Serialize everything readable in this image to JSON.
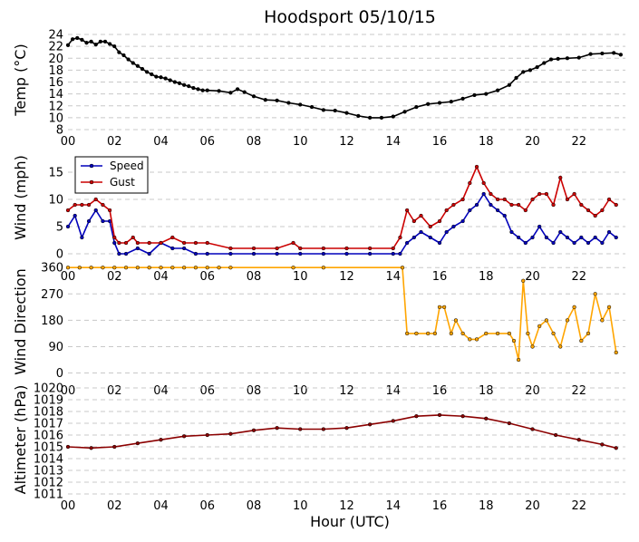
{
  "chart_data": {
    "title": "Hoodsport 05/10/15",
    "xlabel": "Hour (UTC)",
    "x_tick_labels": [
      "00",
      "02",
      "04",
      "06",
      "08",
      "10",
      "12",
      "14",
      "16",
      "18",
      "20",
      "22"
    ],
    "panels": [
      {
        "type": "line",
        "ylabel": "Temp ($^\\circ$C)",
        "ylabel_display": "Temp (°C)",
        "ylim": [
          8,
          24
        ],
        "ytick_labels": [
          "8",
          "10",
          "12",
          "14",
          "16",
          "18",
          "20",
          "22",
          "24"
        ],
        "series": [
          {
            "color": "#000000",
            "x": [
              0,
              0.2,
              0.4,
              0.6,
              0.8,
              1.0,
              1.2,
              1.4,
              1.6,
              1.8,
              2.0,
              2.2,
              2.4,
              2.6,
              2.8,
              3.0,
              3.2,
              3.4,
              3.6,
              3.8,
              4.0,
              4.2,
              4.4,
              4.6,
              4.8,
              5.0,
              5.2,
              5.4,
              5.6,
              5.8,
              6.0,
              6.5,
              7.0,
              7.3,
              7.6,
              8.0,
              8.5,
              9.0,
              9.5,
              10.0,
              10.5,
              11.0,
              11.5,
              12.0,
              12.5,
              13.0,
              13.5,
              14.0,
              14.5,
              15.0,
              15.5,
              16.0,
              16.5,
              17.0,
              17.5,
              18.0,
              18.5,
              19.0,
              19.3,
              19.6,
              19.9,
              20.2,
              20.5,
              20.8,
              21.1,
              21.5,
              22.0,
              22.5,
              23.0,
              23.5,
              23.8
            ],
            "y": [
              22.2,
              23.2,
              23.4,
              23.1,
              22.6,
              22.8,
              22.3,
              22.8,
              22.8,
              22.4,
              22.0,
              21.0,
              20.5,
              19.8,
              19.2,
              18.7,
              18.2,
              17.7,
              17.3,
              16.9,
              16.8,
              16.6,
              16.3,
              16.0,
              15.8,
              15.5,
              15.3,
              15.0,
              14.8,
              14.6,
              14.6,
              14.5,
              14.2,
              14.8,
              14.3,
              13.6,
              13.0,
              12.9,
              12.5,
              12.2,
              11.8,
              11.3,
              11.2,
              10.8,
              10.3,
              10.0,
              10.0,
              10.2,
              11.0,
              11.8,
              12.3,
              12.5,
              12.7,
              13.2,
              13.8,
              14.0,
              14.6,
              15.5,
              16.7,
              17.7,
              18.0,
              18.5,
              19.2,
              19.8,
              19.9,
              20.0,
              20.1,
              20.7,
              20.8,
              20.9,
              20.6
            ]
          }
        ]
      },
      {
        "type": "line",
        "ylabel": "Wind (mph)",
        "ylim": [
          -2,
          18
        ],
        "ytick_labels": [
          "0",
          "5",
          "10",
          "15"
        ],
        "legend_position": "top-left",
        "series": [
          {
            "name": "Speed",
            "color": "#0000bb",
            "x": [
              0,
              0.3,
              0.6,
              0.9,
              1.2,
              1.5,
              1.8,
              2.0,
              2.2,
              2.5,
              3.0,
              3.5,
              4.0,
              4.5,
              5.0,
              5.5,
              6.0,
              7.0,
              8.0,
              9.0,
              10.0,
              11.0,
              12.0,
              13.0,
              14.0,
              14.3,
              14.6,
              14.9,
              15.2,
              15.6,
              16.0,
              16.3,
              16.6,
              17.0,
              17.3,
              17.6,
              17.9,
              18.2,
              18.5,
              18.8,
              19.1,
              19.4,
              19.7,
              20.0,
              20.3,
              20.6,
              20.9,
              21.2,
              21.5,
              21.8,
              22.1,
              22.4,
              22.7,
              23.0,
              23.3,
              23.6
            ],
            "y": [
              5,
              7,
              3,
              6,
              8,
              6,
              6,
              2,
              0,
              0,
              1,
              0,
              2,
              1,
              1,
              0,
              0,
              0,
              0,
              0,
              0,
              0,
              0,
              0,
              0,
              0,
              2,
              3,
              4,
              3,
              2,
              4,
              5,
              6,
              8,
              9,
              11,
              9,
              8,
              7,
              4,
              3,
              2,
              3,
              5,
              3,
              2,
              4,
              3,
              2,
              3,
              2,
              3,
              2,
              4,
              3
            ]
          },
          {
            "name": "Gust",
            "color": "#cc0000",
            "x": [
              0,
              0.3,
              0.6,
              0.9,
              1.2,
              1.5,
              1.8,
              2.0,
              2.2,
              2.5,
              2.8,
              3.0,
              3.5,
              4.0,
              4.5,
              5.0,
              5.5,
              6.0,
              7.0,
              8.0,
              9.0,
              9.7,
              10.0,
              11.0,
              12.0,
              13.0,
              14.0,
              14.3,
              14.6,
              14.9,
              15.2,
              15.6,
              16.0,
              16.3,
              16.6,
              17.0,
              17.3,
              17.6,
              17.9,
              18.2,
              18.5,
              18.8,
              19.1,
              19.4,
              19.7,
              20.0,
              20.3,
              20.6,
              20.9,
              21.2,
              21.5,
              21.8,
              22.1,
              22.4,
              22.7,
              23.0,
              23.3,
              23.6
            ],
            "y": [
              8,
              9,
              9,
              9,
              10,
              9,
              8,
              3,
              2,
              2,
              3,
              2,
              2,
              2,
              3,
              2,
              2,
              2,
              1,
              1,
              1,
              2,
              1,
              1,
              1,
              1,
              1,
              3,
              8,
              6,
              7,
              5,
              6,
              8,
              9,
              10,
              13,
              16,
              13,
              11,
              10,
              10,
              9,
              9,
              8,
              10,
              11,
              11,
              9,
              14,
              10,
              11,
              9,
              8,
              7,
              8,
              10,
              9
            ]
          }
        ]
      },
      {
        "type": "line",
        "ylabel": "Wind Direction",
        "ylim": [
          -20,
          370
        ],
        "ytick_labels": [
          "0",
          "90",
          "180",
          "270",
          "360"
        ],
        "series": [
          {
            "color": "#ffa500",
            "x": [
              0,
              0.5,
              1.0,
              1.5,
              2.0,
              2.5,
              3.0,
              3.5,
              4.0,
              4.5,
              5.0,
              5.5,
              6.0,
              6.5,
              7.0,
              9.7,
              11.0,
              14.4,
              14.6,
              15.0,
              15.5,
              15.8,
              16.0,
              16.2,
              16.5,
              16.7,
              17.0,
              17.3,
              17.6,
              18.0,
              18.5,
              19.0,
              19.2,
              19.4,
              19.6,
              19.8,
              20.0,
              20.3,
              20.6,
              20.9,
              21.2,
              21.5,
              21.8,
              22.1,
              22.4,
              22.7,
              23.0,
              23.3,
              23.6
            ],
            "y": [
              360,
              360,
              360,
              360,
              360,
              360,
              360,
              360,
              360,
              360,
              360,
              360,
              360,
              360,
              360,
              360,
              360,
              360,
              135,
              135,
              135,
              135,
              225,
              225,
              135,
              180,
              135,
              115,
              115,
              135,
              135,
              135,
              110,
              45,
              315,
              135,
              90,
              160,
              180,
              135,
              90,
              180,
              225,
              110,
              135,
              270,
              180,
              225,
              70
            ]
          }
        ]
      },
      {
        "type": "line",
        "ylabel": "Altimeter (hPa)",
        "ylim": [
          1011,
          1020
        ],
        "ytick_labels": [
          "1011",
          "1012",
          "1013",
          "1014",
          "1015",
          "1016",
          "1017",
          "1018",
          "1019",
          "1020"
        ],
        "series": [
          {
            "color": "#8b0000",
            "x": [
              0,
              1,
              2,
              3,
              4,
              5,
              6,
              7,
              8,
              9,
              10,
              11,
              12,
              13,
              14,
              15,
              16,
              17,
              18,
              19,
              20,
              21,
              22,
              23,
              23.6
            ],
            "y": [
              1015.0,
              1014.9,
              1015.0,
              1015.3,
              1015.6,
              1015.9,
              1016.0,
              1016.1,
              1016.4,
              1016.6,
              1016.5,
              1016.5,
              1016.6,
              1016.9,
              1017.2,
              1017.6,
              1017.7,
              1017.6,
              1017.4,
              1017.0,
              1016.5,
              1016.0,
              1015.6,
              1015.2,
              1014.9
            ]
          }
        ]
      }
    ]
  },
  "legend": {
    "speed_label": "Speed",
    "gust_label": "Gust"
  }
}
